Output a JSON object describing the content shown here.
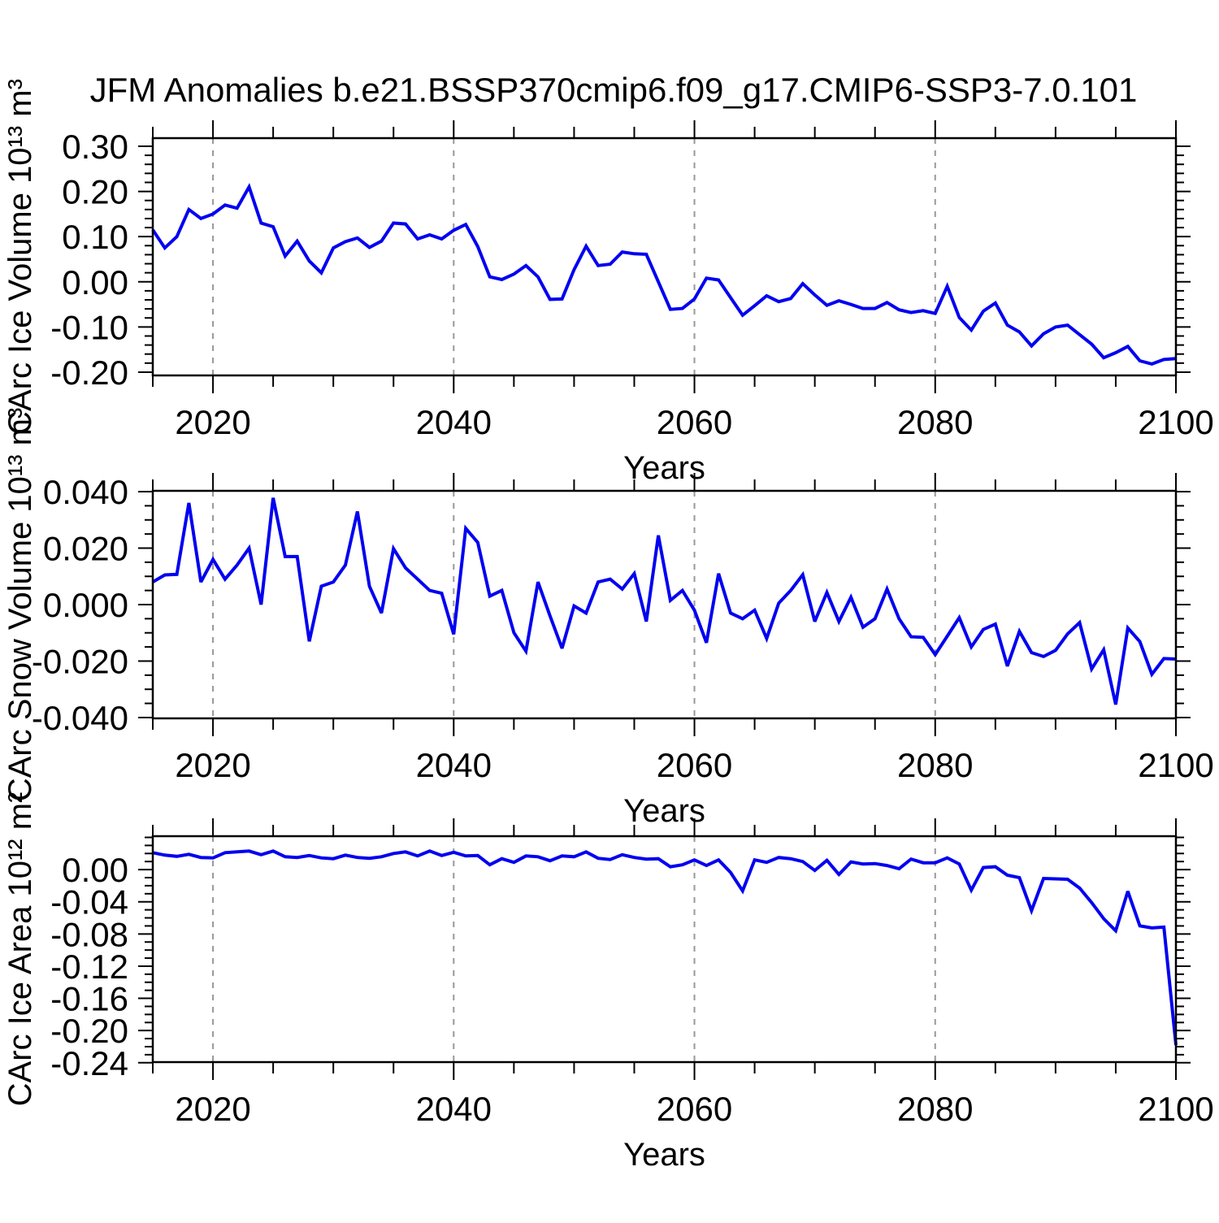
{
  "title": "JFM Anomalies b.e21.BSSP370cmip6.f09_g17.CMIP6-SSP3-7.0.101",
  "xlabel": "Years",
  "x_tick_labels": [
    "2020",
    "2040",
    "2060",
    "2080",
    "2100"
  ],
  "x_tick_years": [
    2020,
    2040,
    2060,
    2080,
    2100
  ],
  "gridline_years": [
    2020,
    2040,
    2060,
    2080
  ],
  "x_minor_step": 5,
  "x_range": [
    2015,
    2100
  ],
  "colors": {
    "line": "#0202f0",
    "grid": "#999999",
    "frame": "#000000",
    "background": "#ffffff"
  },
  "chart_data": [
    {
      "type": "line",
      "id": "ice-volume",
      "ylabel": "CArc Ice Volume 10¹³ m³",
      "xlabel": "Years",
      "x_start": 2015,
      "x_step": 1,
      "xlim": [
        2015,
        2100
      ],
      "ylim": [
        -0.2073,
        0.318
      ],
      "yticks": [
        0.3,
        0.2,
        0.1,
        0.0,
        -0.1,
        -0.2
      ],
      "ytick_labels": [
        "0.30",
        "0.20",
        "0.10",
        "0.00",
        "-0.10",
        "-0.20"
      ],
      "y_minor_step": 0.02,
      "grid": "vertical-dashed",
      "legend": "none",
      "values": [
        0.115,
        0.075,
        0.1,
        0.16,
        0.14,
        0.15,
        0.17,
        0.163,
        0.21,
        0.13,
        0.122,
        0.057,
        0.09,
        0.046,
        0.02,
        0.075,
        0.089,
        0.097,
        0.076,
        0.09,
        0.13,
        0.128,
        0.095,
        0.104,
        0.095,
        0.114,
        0.127,
        0.078,
        0.011,
        0.005,
        0.017,
        0.036,
        0.011,
        -0.039,
        -0.038,
        0.027,
        0.079,
        0.036,
        0.039,
        0.066,
        0.062,
        0.061,
        0.0,
        -0.061,
        -0.059,
        -0.038,
        0.008,
        0.004,
        -0.035,
        -0.074,
        -0.053,
        -0.031,
        -0.044,
        -0.037,
        -0.004,
        -0.029,
        -0.052,
        -0.042,
        -0.05,
        -0.059,
        -0.059,
        -0.046,
        -0.062,
        -0.068,
        -0.064,
        -0.07,
        -0.01,
        -0.079,
        -0.107,
        -0.065,
        -0.047,
        -0.096,
        -0.111,
        -0.142,
        -0.115,
        -0.1,
        -0.096,
        -0.117,
        -0.138,
        -0.168,
        -0.157,
        -0.143,
        -0.175,
        -0.182,
        -0.172,
        -0.17
      ]
    },
    {
      "type": "line",
      "id": "snow-volume",
      "ylabel": "CArc Snow Volume 10¹³ m³",
      "xlabel": "Years",
      "x_start": 2015,
      "x_step": 1,
      "xlim": [
        2015,
        2100
      ],
      "ylim": [
        -0.0403,
        0.0403
      ],
      "yticks": [
        0.04,
        0.02,
        0.0,
        -0.02,
        -0.04
      ],
      "ytick_labels": [
        "0.040",
        "0.020",
        "0.000",
        "-0.020",
        "-0.040"
      ],
      "y_minor_step": 0.005,
      "grid": "vertical-dashed",
      "legend": "none",
      "values": [
        0.008,
        0.0105,
        0.0107,
        0.036,
        0.008,
        0.016,
        0.009,
        0.014,
        0.02,
        0.0,
        0.0378,
        0.017,
        0.017,
        -0.013,
        0.0065,
        0.008,
        0.014,
        0.033,
        0.0065,
        -0.003,
        0.0198,
        0.013,
        0.009,
        0.005,
        0.004,
        -0.0105,
        0.027,
        0.022,
        0.003,
        0.005,
        -0.01,
        -0.0165,
        0.008,
        -0.004,
        -0.0155,
        -0.0005,
        -0.003,
        0.008,
        0.009,
        0.0055,
        0.011,
        -0.006,
        0.0245,
        0.0015,
        0.005,
        -0.002,
        -0.0135,
        0.011,
        -0.003,
        -0.005,
        -0.002,
        -0.012,
        0.0005,
        0.005,
        0.0106,
        -0.006,
        0.0043,
        -0.006,
        0.0026,
        -0.008,
        -0.005,
        0.0055,
        -0.005,
        -0.0114,
        -0.0116,
        -0.0177,
        -0.0112,
        -0.0046,
        -0.015,
        -0.0088,
        -0.0069,
        -0.0218,
        -0.0095,
        -0.017,
        -0.0184,
        -0.0162,
        -0.0104,
        -0.0064,
        -0.0228,
        -0.016,
        -0.0354,
        -0.0083,
        -0.0131,
        -0.0247,
        -0.0191,
        -0.0193
      ]
    },
    {
      "type": "line",
      "id": "ice-area",
      "ylabel": "CArc Ice Area 10¹² m²",
      "xlabel": "Years",
      "x_start": 2015,
      "x_step": 1,
      "xlim": [
        2015,
        2100
      ],
      "ylim": [
        -0.2392,
        0.0415
      ],
      "yticks": [
        0.0,
        -0.04,
        -0.08,
        -0.12,
        -0.16,
        -0.2,
        -0.24
      ],
      "ytick_labels": [
        "0.00",
        "-0.04",
        "-0.08",
        "-0.12",
        "-0.16",
        "-0.20",
        "-0.24"
      ],
      "y_minor_step": 0.01,
      "grid": "vertical-dashed",
      "legend": "none",
      "values": [
        0.021,
        0.018,
        0.0165,
        0.019,
        0.015,
        0.0145,
        0.021,
        0.022,
        0.023,
        0.0185,
        0.023,
        0.016,
        0.015,
        0.0175,
        0.0145,
        0.0135,
        0.018,
        0.015,
        0.014,
        0.016,
        0.02,
        0.022,
        0.017,
        0.023,
        0.0175,
        0.0215,
        0.017,
        0.0175,
        0.006,
        0.0135,
        0.009,
        0.017,
        0.016,
        0.011,
        0.017,
        0.016,
        0.022,
        0.014,
        0.0125,
        0.0185,
        0.015,
        0.013,
        0.0135,
        0.0035,
        0.006,
        0.012,
        0.005,
        0.012,
        -0.0035,
        -0.0265,
        0.012,
        0.009,
        0.015,
        0.0135,
        0.01,
        -0.001,
        0.0115,
        -0.006,
        0.0095,
        0.007,
        0.0075,
        0.005,
        0.001,
        0.013,
        0.0085,
        0.0085,
        0.0145,
        0.007,
        -0.0255,
        0.0025,
        0.0035,
        -0.007,
        -0.01,
        -0.051,
        -0.011,
        -0.0115,
        -0.012,
        -0.023,
        -0.041,
        -0.061,
        -0.076,
        -0.027,
        -0.07,
        -0.0725,
        -0.0715,
        -0.218
      ]
    }
  ]
}
